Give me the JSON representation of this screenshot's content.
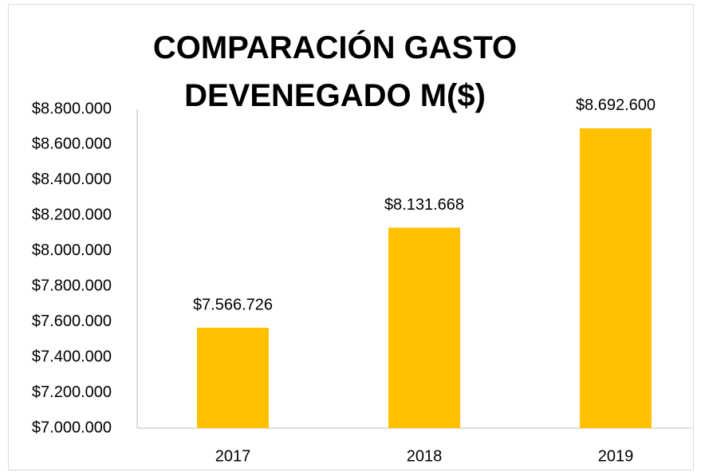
{
  "chart_data": {
    "type": "bar",
    "title": "COMPARACIÓN GASTO DEVENEGADO M($)",
    "categories": [
      "2017",
      "2018",
      "2019"
    ],
    "values": [
      7566726,
      8131668,
      8692600
    ],
    "value_labels": [
      "$7.566.726",
      "$8.131.668",
      "$8.692.600"
    ],
    "color": "#ffc000",
    "ylim": [
      7000000,
      8800000
    ],
    "yticks": [
      {
        "value": 7000000,
        "label": "$7.000.000"
      },
      {
        "value": 7200000,
        "label": "$7.200.000"
      },
      {
        "value": 7400000,
        "label": "$7.400.000"
      },
      {
        "value": 7600000,
        "label": "$7.600.000"
      },
      {
        "value": 7800000,
        "label": "$7.800.000"
      },
      {
        "value": 8000000,
        "label": "$8.000.000"
      },
      {
        "value": 8200000,
        "label": "$8.200.000"
      },
      {
        "value": 8400000,
        "label": "$8.400.000"
      },
      {
        "value": 8600000,
        "label": "$8.600.000"
      },
      {
        "value": 8800000,
        "label": "$8.800.000"
      }
    ],
    "grid": false
  }
}
